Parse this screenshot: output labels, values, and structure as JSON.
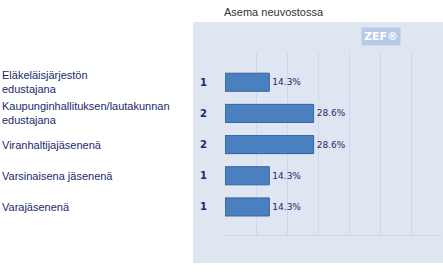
{
  "chart_data": {
    "type": "bar",
    "title": "Asema neuvostossa",
    "logo": "ZEF®",
    "orientation": "horizontal",
    "categories": [
      "Eläkeläisjärjestön edustajana",
      "Kaupunginhallituksen/lautakunnan edustajana",
      "Viranhaltijajäsenenä",
      "Varsinaisena jäsenenä",
      "Varajäsenenä"
    ],
    "counts": [
      1,
      2,
      2,
      1,
      1
    ],
    "values": [
      14.3,
      28.6,
      28.6,
      14.3,
      14.3
    ],
    "value_labels": [
      "14.3%",
      "28.6%",
      "28.6%",
      "14.3%",
      "14.3%"
    ],
    "data_labels": true,
    "color": "#4b80c0",
    "xlim": [
      0,
      70
    ],
    "xticks": [
      0,
      10,
      20,
      30,
      40,
      50,
      60,
      70
    ],
    "grid": true,
    "tick_labels": "y"
  }
}
